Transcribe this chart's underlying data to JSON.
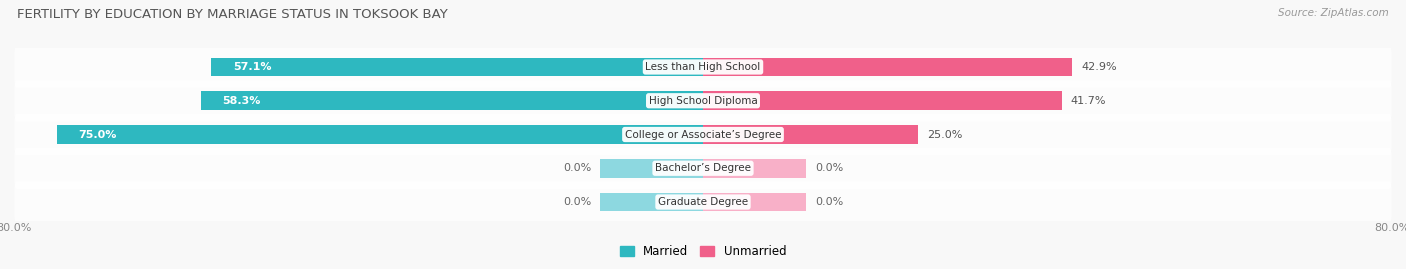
{
  "title": "FERTILITY BY EDUCATION BY MARRIAGE STATUS IN TOKSOOK BAY",
  "source": "Source: ZipAtlas.com",
  "categories": [
    "Less than High School",
    "High School Diploma",
    "College or Associate’s Degree",
    "Bachelor’s Degree",
    "Graduate Degree"
  ],
  "married_values": [
    57.1,
    58.3,
    75.0,
    0.0,
    0.0
  ],
  "unmarried_values": [
    42.9,
    41.7,
    25.0,
    0.0,
    0.0
  ],
  "married_color": "#2eb8c0",
  "unmarried_color": "#f0608a",
  "married_light_color": "#8dd8e0",
  "unmarried_light_color": "#f8b0c8",
  "bar_stub": 12.0,
  "xlim_left": -80.0,
  "xlim_right": 80.0,
  "title_fontsize": 9.5,
  "source_fontsize": 7.5,
  "label_fontsize": 7.5,
  "value_fontsize": 8,
  "tick_fontsize": 8,
  "legend_fontsize": 8.5,
  "row_colors": [
    "#f2f2f2",
    "#ebebeb",
    "#e6e6e6",
    "#f2f2f2",
    "#ebebeb"
  ],
  "bg_color": "#f8f8f8"
}
